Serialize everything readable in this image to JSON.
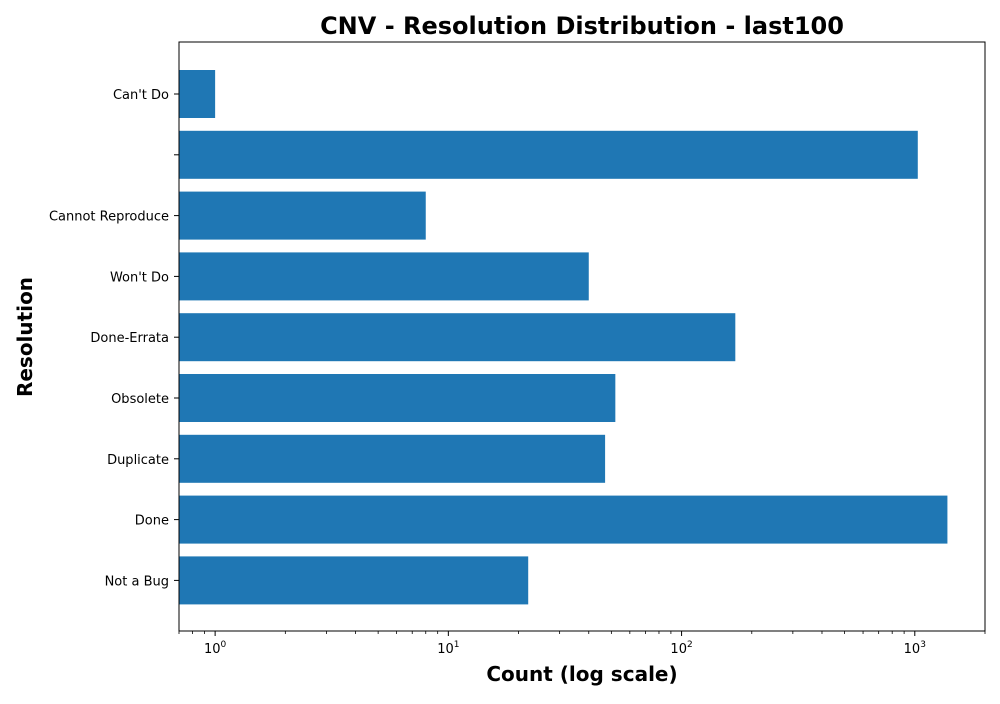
{
  "chart_data": {
    "type": "bar",
    "orientation": "horizontal",
    "title": "CNV - Resolution Distribution - last100",
    "xlabel": "Count (log scale)",
    "ylabel": "Resolution",
    "xscale": "log",
    "xlim": [
      0.7,
      2000
    ],
    "x_ticks": [
      {
        "value": 1,
        "base": "10",
        "exp": "0"
      },
      {
        "value": 10,
        "base": "10",
        "exp": "1"
      },
      {
        "value": 100,
        "base": "10",
        "exp": "2"
      },
      {
        "value": 1000,
        "base": "10",
        "exp": "3"
      }
    ],
    "categories": [
      "Can't Do",
      "",
      "Cannot Reproduce",
      "Won't Do",
      "Done-Errata",
      "Obsolete",
      "Duplicate",
      "Done",
      "Not a Bug"
    ],
    "values": [
      1,
      1030,
      8,
      40,
      170,
      52,
      47,
      1380,
      22
    ],
    "bar_color": "#1f77b4",
    "grid": false
  }
}
